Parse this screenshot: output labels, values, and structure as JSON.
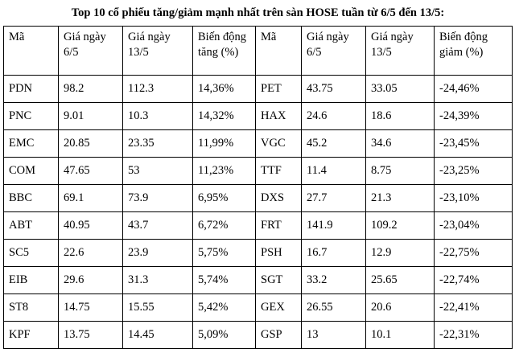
{
  "title": "Top 10 cổ phiếu tăng/giảm mạnh nhất trên sàn HOSE tuần từ 6/5 đến 13/5:",
  "table": {
    "headers": [
      "Mã",
      "Giá ngày 6/5",
      "Giá ngày 13/5",
      "Biến động tăng (%)",
      "Mã",
      "Giá ngày 6/5",
      "Giá ngày 13/5",
      "Biến động giảm (%)"
    ],
    "rows": [
      [
        "PDN",
        "98.2",
        "112.3",
        "14,36%",
        "PET",
        "43.75",
        "33.05",
        "-24,46%"
      ],
      [
        "PNC",
        "9.01",
        "10.3",
        "14,32%",
        "HAX",
        "24.6",
        "18.6",
        "-24,39%"
      ],
      [
        "EMC",
        "20.85",
        "23.35",
        "11,99%",
        "VGC",
        "45.2",
        "34.6",
        "-23,45%"
      ],
      [
        "COM",
        "47.65",
        "53",
        "11,23%",
        "TTF",
        "11.4",
        "8.75",
        "-23,25%"
      ],
      [
        "BBC",
        "69.1",
        "73.9",
        "6,95%",
        "DXS",
        "27.7",
        "21.3",
        "-23,10%"
      ],
      [
        "ABT",
        "40.95",
        "43.7",
        "6,72%",
        "FRT",
        "141.9",
        "109.2",
        "-23,04%"
      ],
      [
        "SC5",
        "22.6",
        "23.9",
        "5,75%",
        "PSH",
        "16.7",
        "12.9",
        "-22,75%"
      ],
      [
        "EIB",
        "29.6",
        "31.3",
        "5,74%",
        "SGT",
        "33.2",
        "25.65",
        "-22,74%"
      ],
      [
        "ST8",
        "14.75",
        "15.55",
        "5,42%",
        "GEX",
        "26.55",
        "20.6",
        "-22,41%"
      ],
      [
        "KPF",
        "13.75",
        "14.45",
        "5,09%",
        "GSP",
        "13",
        "10.1",
        "-22,31%"
      ]
    ]
  },
  "chart_data": {
    "type": "table",
    "title": "Top 10 cổ phiếu tăng/giảm mạnh nhất trên sàn HOSE tuần từ 6/5 đến 13/5:",
    "columns": [
      "Mã",
      "Giá ngày 6/5",
      "Giá ngày 13/5",
      "Biến động (%)"
    ],
    "gainers": [
      {
        "ma": "PDN",
        "gia_6_5": 98.2,
        "gia_13_5": 112.3,
        "bien_dong_tang_pct": "14,36%"
      },
      {
        "ma": "PNC",
        "gia_6_5": 9.01,
        "gia_13_5": 10.3,
        "bien_dong_tang_pct": "14,32%"
      },
      {
        "ma": "EMC",
        "gia_6_5": 20.85,
        "gia_13_5": 23.35,
        "bien_dong_tang_pct": "11,99%"
      },
      {
        "ma": "COM",
        "gia_6_5": 47.65,
        "gia_13_5": 53,
        "bien_dong_tang_pct": "11,23%"
      },
      {
        "ma": "BBC",
        "gia_6_5": 69.1,
        "gia_13_5": 73.9,
        "bien_dong_tang_pct": "6,95%"
      },
      {
        "ma": "ABT",
        "gia_6_5": 40.95,
        "gia_13_5": 43.7,
        "bien_dong_tang_pct": "6,72%"
      },
      {
        "ma": "SC5",
        "gia_6_5": 22.6,
        "gia_13_5": 23.9,
        "bien_dong_tang_pct": "5,75%"
      },
      {
        "ma": "EIB",
        "gia_6_5": 29.6,
        "gia_13_5": 31.3,
        "bien_dong_tang_pct": "5,74%"
      },
      {
        "ma": "ST8",
        "gia_6_5": 14.75,
        "gia_13_5": 15.55,
        "bien_dong_tang_pct": "5,42%"
      },
      {
        "ma": "KPF",
        "gia_6_5": 13.75,
        "gia_13_5": 14.45,
        "bien_dong_tang_pct": "5,09%"
      }
    ],
    "losers": [
      {
        "ma": "PET",
        "gia_6_5": 43.75,
        "gia_13_5": 33.05,
        "bien_dong_giam_pct": "-24,46%"
      },
      {
        "ma": "HAX",
        "gia_6_5": 24.6,
        "gia_13_5": 18.6,
        "bien_dong_giam_pct": "-24,39%"
      },
      {
        "ma": "VGC",
        "gia_6_5": 45.2,
        "gia_13_5": 34.6,
        "bien_dong_giam_pct": "-23,45%"
      },
      {
        "ma": "TTF",
        "gia_6_5": 11.4,
        "gia_13_5": 8.75,
        "bien_dong_giam_pct": "-23,25%"
      },
      {
        "ma": "DXS",
        "gia_6_5": 27.7,
        "gia_13_5": 21.3,
        "bien_dong_giam_pct": "-23,10%"
      },
      {
        "ma": "FRT",
        "gia_6_5": 141.9,
        "gia_13_5": 109.2,
        "bien_dong_giam_pct": "-23,04%"
      },
      {
        "ma": "PSH",
        "gia_6_5": 16.7,
        "gia_13_5": 12.9,
        "bien_dong_giam_pct": "-22,75%"
      },
      {
        "ma": "SGT",
        "gia_6_5": 33.2,
        "gia_13_5": 25.65,
        "bien_dong_giam_pct": "-22,74%"
      },
      {
        "ma": "GEX",
        "gia_6_5": 26.55,
        "gia_13_5": 20.6,
        "bien_dong_giam_pct": "-22,41%"
      },
      {
        "ma": "GSP",
        "gia_6_5": 13,
        "gia_13_5": 10.1,
        "bien_dong_giam_pct": "-22,31%"
      }
    ]
  }
}
